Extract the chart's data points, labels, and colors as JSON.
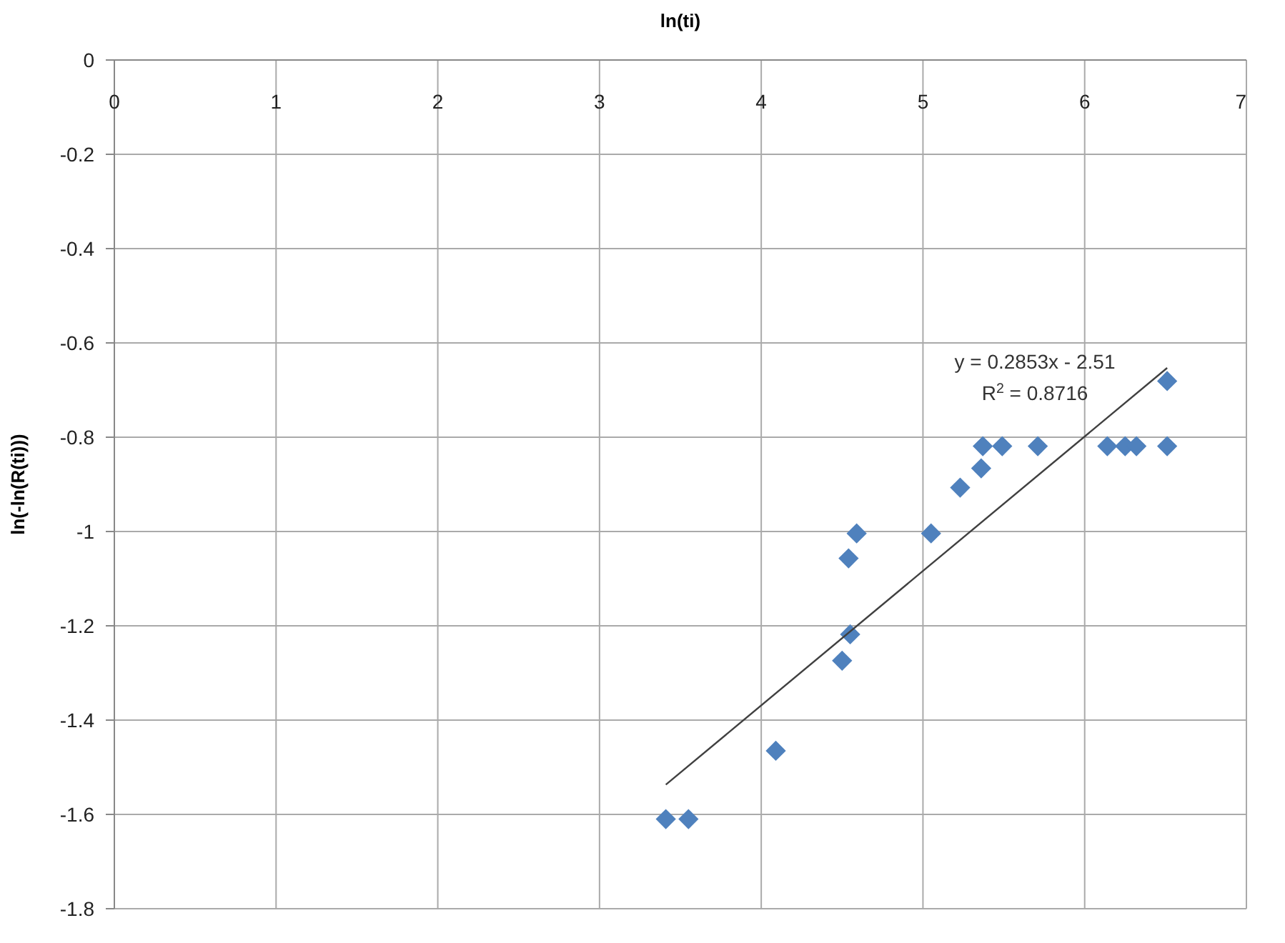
{
  "chart_data": {
    "type": "scatter",
    "xlabel": "ln(ti)",
    "ylabel": "ln(-ln(R(ti)))",
    "xlim": [
      0,
      7
    ],
    "xticks": [
      0,
      1,
      2,
      3,
      4,
      5,
      6,
      7
    ],
    "ylim": [
      -1.8,
      0
    ],
    "yticks": [
      -1.8,
      -1.6,
      -1.4,
      -1.2,
      -1,
      -0.8,
      -0.6,
      -0.4,
      -0.2,
      0
    ],
    "grid": true,
    "marker": "diamond",
    "series": [
      {
        "color": "#4f81bd",
        "x": [
          3.41,
          3.55,
          4.09,
          4.5,
          4.55,
          4.54,
          4.59,
          5.05,
          5.23,
          5.36,
          5.37,
          5.49,
          5.71,
          6.14,
          6.25,
          6.32,
          6.51,
          6.51
        ],
        "values": [
          -1.61,
          -1.61,
          -1.465,
          -1.274,
          -1.218,
          -1.057,
          -1.004,
          -1.004,
          -0.907,
          -0.866,
          -0.819,
          -0.819,
          -0.819,
          -0.819,
          -0.819,
          -0.819,
          -0.819,
          -0.681
        ]
      },
      {
        "type": "line",
        "color": "#404040",
        "marker": "none",
        "x": [
          3.41,
          6.51
        ],
        "values": [
          -1.537,
          -0.653
        ]
      }
    ],
    "annotations": [
      "y = 0.2853x - 2.51",
      "R$^{2}$ = 0.8716"
    ]
  }
}
